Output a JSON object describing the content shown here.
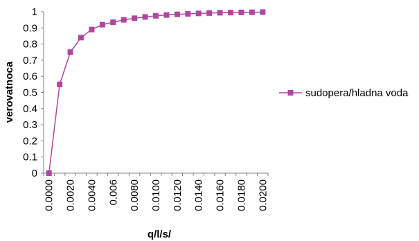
{
  "chart_data": {
    "type": "line",
    "xlabel": "q/l/s/",
    "ylabel": "verovatnoca",
    "ylim": [
      0,
      1
    ],
    "y_ticks": [
      "0",
      "0.1",
      "0.2",
      "0.3",
      "0.4",
      "0.5",
      "0.6",
      "0.7",
      "0.8",
      "0.9",
      "1"
    ],
    "categories": [
      "0.0000",
      "0.0010",
      "0.0020",
      "0.0030",
      "0.0040",
      "0.0050",
      "0.006",
      "0.0070",
      "0.0080",
      "0.0090",
      "0.0100",
      "0.0110",
      "0.0120",
      "0.0130",
      "0.0140",
      "0.0150",
      "0.0160",
      "0.0170",
      "0.0180",
      "0.0190",
      "0.0200"
    ],
    "x_tick_labels_shown": [
      "0.0000",
      "0.0020",
      "0.0040",
      "0.006",
      "0.0080",
      "0.0100",
      "0.0120",
      "0.0140",
      "0.0160",
      "0.0180",
      "0.0200"
    ],
    "series": [
      {
        "name": "sudopera/hladna voda",
        "values": [
          0.0,
          0.55,
          0.75,
          0.84,
          0.89,
          0.92,
          0.935,
          0.95,
          0.96,
          0.968,
          0.975,
          0.98,
          0.984,
          0.987,
          0.99,
          0.992,
          0.994,
          0.995,
          0.996,
          0.997,
          0.998
        ]
      }
    ],
    "grid": false,
    "legend_position": "right",
    "colors": {
      "series": "#b0479f",
      "axis": "#808080"
    }
  }
}
